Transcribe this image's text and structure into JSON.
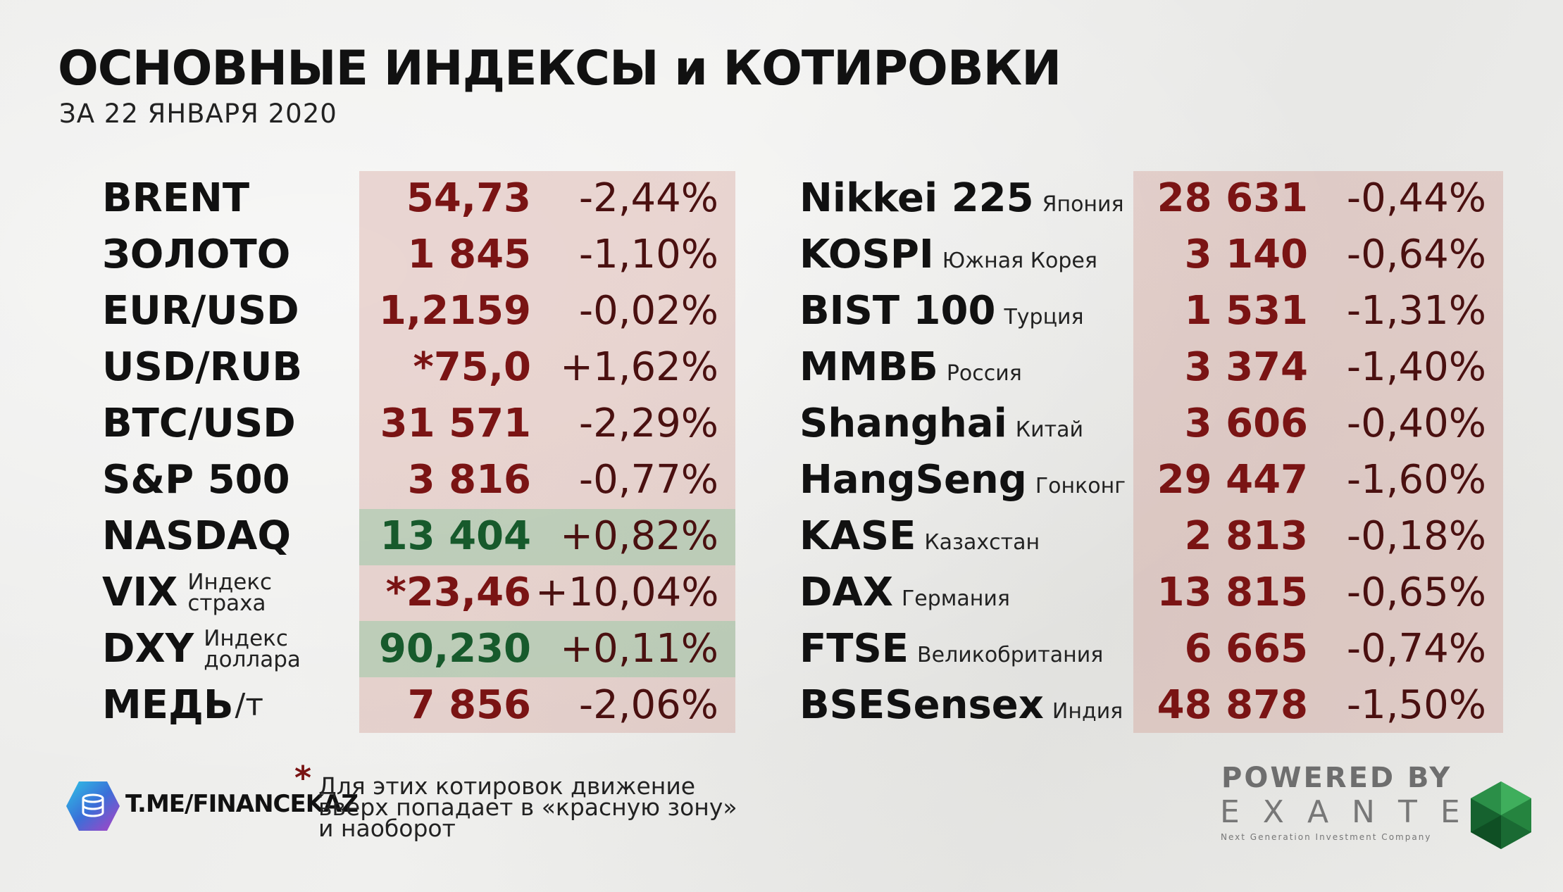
{
  "header": {
    "title": "ОСНОВНЫЕ ИНДЕКСЫ и КОТИРОВКИ",
    "subtitle": "ЗА 22 ЯНВАРЯ 2020"
  },
  "left_table": [
    {
      "name": "BRENT",
      "value": "54,73",
      "change": "-2,44%"
    },
    {
      "name": "ЗОЛОТО",
      "value": "1 845",
      "change": "-1,10%"
    },
    {
      "name": "EUR/USD",
      "value": "1,2159",
      "change": "-0,02%"
    },
    {
      "name": "USD/RUB",
      "value": "*75,0",
      "change": "+1,62%"
    },
    {
      "name": "BTC/USD",
      "value": "31 571",
      "change": "-2,29%"
    },
    {
      "name": "S&P 500",
      "value": "3 816",
      "change": "-0,77%"
    },
    {
      "name": "NASDAQ",
      "value": "13 404",
      "change": "+0,82%",
      "zone": "green"
    },
    {
      "name": "VIX",
      "note_line1": "Индекс",
      "note_line2": "страха",
      "value": "*23,46",
      "change": "+10,04%"
    },
    {
      "name": "DXY",
      "note_line1": "Индекс",
      "note_line2": "доллара",
      "value": "90,230",
      "change": "+0,11%",
      "zone": "green"
    },
    {
      "name": "МЕДЬ",
      "unit": "/т",
      "value": "7 856",
      "change": "-2,06%"
    }
  ],
  "right_table": [
    {
      "name": "Nikkei 225",
      "country": "Япония",
      "value": "28 631",
      "change": "-0,44%"
    },
    {
      "name": "KOSPI",
      "country": "Южная Корея",
      "value": "3 140",
      "change": "-0,64%"
    },
    {
      "name": "BIST 100",
      "country": "Турция",
      "value": "1 531",
      "change": "-1,31%"
    },
    {
      "name": "ММВБ",
      "country": "Россия",
      "value": "3 374",
      "change": "-1,40%"
    },
    {
      "name": "Shanghai",
      "country": "Китай",
      "value": "3 606",
      "change": "-0,40%"
    },
    {
      "name": "HangSeng",
      "country": "Гонконг",
      "value": "29 447",
      "change": "-1,60%"
    },
    {
      "name": "KASE",
      "country": "Казахстан",
      "value": "2 813",
      "change": "-0,18%"
    },
    {
      "name": "DAX",
      "country": "Германия",
      "value": "13 815",
      "change": "-0,65%"
    },
    {
      "name": "FTSE",
      "country": "Великобритания",
      "value": "6 665",
      "change": "-0,74%"
    },
    {
      "name": "BSESensex",
      "country": "Индия",
      "value": "48 878",
      "change": "-1,50%"
    }
  ],
  "footer": {
    "channel": "T.ME/FINANCEKAZ",
    "asterisk": "*",
    "note_line1": "Для этих котировок движение",
    "note_line2": "вверх попадает в «красную зону»",
    "note_line3": "и наоборот",
    "powered_by": "POWERED BY",
    "brand": "EXANTE",
    "brand_tagline": "Next Generation Investment Company"
  },
  "colors": {
    "value_red": "#7a1414",
    "value_green": "#175a2c",
    "zone_red": "rgba(200,130,120,0.28)",
    "zone_green": "rgba(140,200,160,0.45)"
  }
}
